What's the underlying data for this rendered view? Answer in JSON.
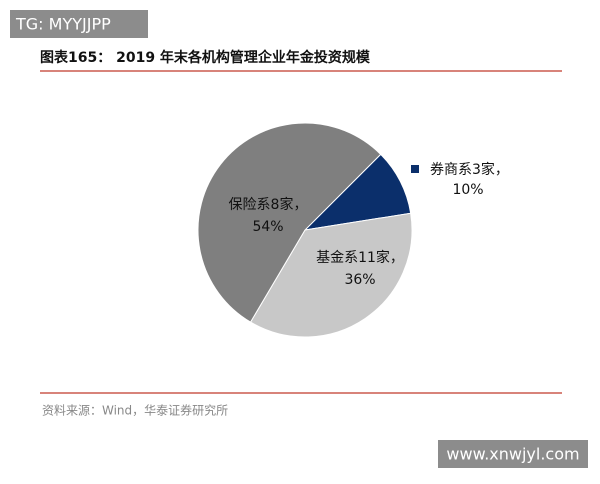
{
  "watermarks": [
    "TG: MYYJJPP",
    "www.xnwjyl.com"
  ],
  "chart_data": {
    "type": "pie",
    "title": "图表165：  2019 年末各机构管理企业年金投资规模",
    "source": "资料来源：Wind，华泰证券研究所",
    "categories": [
      "券商系3家，",
      "基金系11家，",
      "保险系8家，"
    ],
    "values": [
      10,
      36,
      54
    ],
    "value_labels": [
      "10%",
      "36%",
      "54%"
    ],
    "colors": [
      "#0b2f6b",
      "#c8c8c8",
      "#7f7f7f"
    ]
  }
}
